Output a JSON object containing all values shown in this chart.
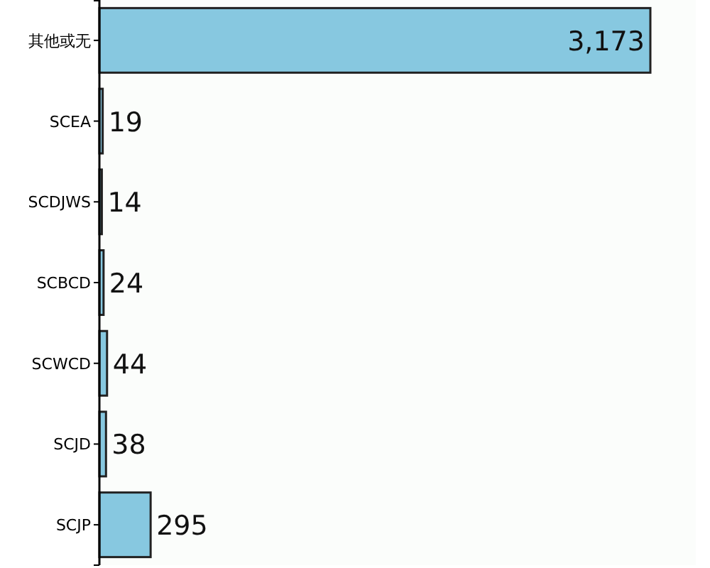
{
  "chart_data": {
    "type": "bar",
    "orientation": "horizontal",
    "categories": [
      "其他或无",
      "SCEA",
      "SCDJWS",
      "SCBCD",
      "SCWCD",
      "SCJD",
      "SCJP"
    ],
    "values": [
      3173,
      19,
      14,
      24,
      44,
      38,
      295
    ],
    "value_labels": [
      "3,173",
      "19",
      "14",
      "24",
      "44",
      "38",
      "295"
    ],
    "color": "#87c8e0"
  }
}
